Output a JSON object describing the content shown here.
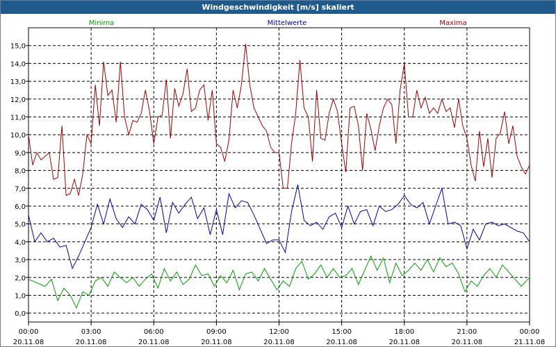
{
  "window": {
    "title": "Windgeschwindigkeit [m/s] skaliert"
  },
  "chart_data": {
    "type": "line",
    "title": "Windgeschwindigkeit [m/s] skaliert",
    "xlabel": "",
    "ylabel": "",
    "ylim": [
      -0.5,
      16
    ],
    "xlim": [
      0,
      24
    ],
    "yticks": [
      0,
      1,
      2,
      3,
      4,
      5,
      6,
      7,
      8,
      9,
      10,
      11,
      12,
      13,
      14,
      15
    ],
    "ytick_labels": [
      "0,0",
      "1,0",
      "2,0",
      "3,0",
      "4,0",
      "5,0",
      "6,0",
      "7,0",
      "8,0",
      "9,0",
      "10,0",
      "11,0",
      "12,0",
      "13,0",
      "14,0",
      "15,0"
    ],
    "xticks": [
      {
        "t": 0,
        "time": "00:00",
        "date": "20.11.08"
      },
      {
        "t": 3,
        "time": "03:00",
        "date": "20.11.08"
      },
      {
        "t": 6,
        "time": "06:00",
        "date": "20.11.08"
      },
      {
        "t": 9,
        "time": "09:00",
        "date": "20.11.08"
      },
      {
        "t": 12,
        "time": "12:00",
        "date": "20.11.08"
      },
      {
        "t": 15,
        "time": "15:00",
        "date": "20.11.08"
      },
      {
        "t": 18,
        "time": "18:00",
        "date": "20.11.08"
      },
      {
        "t": 21,
        "time": "21:00",
        "date": "20.11.08"
      },
      {
        "t": 24,
        "time": "00:00",
        "date": "21.11.08"
      }
    ],
    "grid": true,
    "series": [
      {
        "name": "Minima",
        "color": "#00a000",
        "legend_pos": "left",
        "x": [
          0,
          0.4,
          0.8,
          1.1,
          1.4,
          1.7,
          2.0,
          2.3,
          2.6,
          2.9,
          3.2,
          3.5,
          3.8,
          4.1,
          4.4,
          4.7,
          5.0,
          5.3,
          5.6,
          5.9,
          6.2,
          6.5,
          6.8,
          7.1,
          7.4,
          7.7,
          8.0,
          8.3,
          8.6,
          8.9,
          9.2,
          9.5,
          9.8,
          10.1,
          10.4,
          10.7,
          11.0,
          11.3,
          11.6,
          11.9,
          12.2,
          12.5,
          12.8,
          13.1,
          13.4,
          13.7,
          14.0,
          14.3,
          14.6,
          14.9,
          15.2,
          15.5,
          15.8,
          16.1,
          16.4,
          16.7,
          17.0,
          17.3,
          17.6,
          17.9,
          18.2,
          18.5,
          18.8,
          19.1,
          19.4,
          19.7,
          20.0,
          20.3,
          20.6,
          20.9,
          21.2,
          21.5,
          21.8,
          22.1,
          22.4,
          22.7,
          23.0,
          23.3,
          23.6,
          24.0
        ],
        "y": [
          1.9,
          1.7,
          1.5,
          1.9,
          0.7,
          1.4,
          1.0,
          0.3,
          1.2,
          1.0,
          1.8,
          2.0,
          1.5,
          2.3,
          2.0,
          1.7,
          2.0,
          1.5,
          1.9,
          2.2,
          1.4,
          2.5,
          1.8,
          2.3,
          1.6,
          1.9,
          2.7,
          2.1,
          2.2,
          1.5,
          2.1,
          1.7,
          2.4,
          1.3,
          2.2,
          2.3,
          1.8,
          2.5,
          1.9,
          1.3,
          1.8,
          1.5,
          2.5,
          2.9,
          1.9,
          2.2,
          2.7,
          2.0,
          2.5,
          2.0,
          2.1,
          2.5,
          1.6,
          2.4,
          3.2,
          2.4,
          3.1,
          1.7,
          2.8,
          2.1,
          2.4,
          2.8,
          2.4,
          3.0,
          2.3,
          3.1,
          2.6,
          2.8,
          2.2,
          1.2,
          1.8,
          1.5,
          2.1,
          2.5,
          2.0,
          2.7,
          2.3,
          1.9,
          1.5,
          2.0
        ]
      },
      {
        "name": "Mittelwerte",
        "color": "#0000b0",
        "legend_pos": "center",
        "x": [
          0,
          0.3,
          0.6,
          0.9,
          1.2,
          1.5,
          1.8,
          2.1,
          2.4,
          2.7,
          3.0,
          3.3,
          3.6,
          3.9,
          4.2,
          4.5,
          4.8,
          5.1,
          5.4,
          5.7,
          6.0,
          6.3,
          6.6,
          6.9,
          7.2,
          7.5,
          7.8,
          8.1,
          8.4,
          8.7,
          9.0,
          9.3,
          9.6,
          9.9,
          10.2,
          10.5,
          10.8,
          11.1,
          11.4,
          11.7,
          12.0,
          12.3,
          12.6,
          12.9,
          13.2,
          13.5,
          13.8,
          14.1,
          14.4,
          14.7,
          15.0,
          15.3,
          15.6,
          15.9,
          16.2,
          16.5,
          16.8,
          17.1,
          17.4,
          17.7,
          18.0,
          18.3,
          18.6,
          18.9,
          19.2,
          19.5,
          19.8,
          20.1,
          20.4,
          20.7,
          21.0,
          21.3,
          21.6,
          21.9,
          22.2,
          22.5,
          22.8,
          23.1,
          23.4,
          23.7,
          24.0
        ],
        "y": [
          5.5,
          4.0,
          4.5,
          4.0,
          4.2,
          3.7,
          3.8,
          2.5,
          3.2,
          4.0,
          4.8,
          6.1,
          5.0,
          6.4,
          5.3,
          4.8,
          5.4,
          5.0,
          6.1,
          5.8,
          5.2,
          6.5,
          4.5,
          6.2,
          5.6,
          6.1,
          6.5,
          5.3,
          5.9,
          4.4,
          5.8,
          4.4,
          6.7,
          5.9,
          6.3,
          6.2,
          5.5,
          4.7,
          3.9,
          4.1,
          4.1,
          3.4,
          5.7,
          7.2,
          5.2,
          4.9,
          5.1,
          4.7,
          5.4,
          5.6,
          4.8,
          6.0,
          5.0,
          5.7,
          5.8,
          4.9,
          6.0,
          5.7,
          5.8,
          6.1,
          6.6,
          6.1,
          5.9,
          6.2,
          5.0,
          6.0,
          7.0,
          5.0,
          5.1,
          4.9,
          3.6,
          4.7,
          4.1,
          5.0,
          5.1,
          4.9,
          5.0,
          4.8,
          4.6,
          4.5,
          4.0
        ]
      },
      {
        "name": "Maxima",
        "color": "#a00000",
        "legend_pos": "right",
        "x": [
          0,
          0.2,
          0.4,
          0.6,
          0.8,
          1.0,
          1.2,
          1.4,
          1.6,
          1.8,
          2.0,
          2.2,
          2.4,
          2.6,
          2.8,
          3.0,
          3.2,
          3.4,
          3.6,
          3.8,
          4.0,
          4.2,
          4.4,
          4.6,
          4.8,
          5.0,
          5.2,
          5.4,
          5.6,
          5.8,
          6.0,
          6.2,
          6.4,
          6.6,
          6.8,
          7.0,
          7.2,
          7.4,
          7.6,
          7.8,
          8.0,
          8.2,
          8.4,
          8.6,
          8.8,
          9.0,
          9.2,
          9.4,
          9.6,
          9.8,
          10.0,
          10.2,
          10.4,
          10.6,
          10.8,
          11.0,
          11.2,
          11.4,
          11.6,
          11.8,
          12.0,
          12.2,
          12.4,
          12.6,
          12.8,
          13.0,
          13.2,
          13.4,
          13.6,
          13.8,
          14.0,
          14.2,
          14.4,
          14.6,
          14.8,
          15.0,
          15.2,
          15.4,
          15.6,
          15.8,
          16.0,
          16.2,
          16.4,
          16.6,
          16.8,
          17.0,
          17.2,
          17.4,
          17.6,
          17.8,
          18.0,
          18.2,
          18.4,
          18.6,
          18.8,
          19.0,
          19.2,
          19.4,
          19.6,
          19.8,
          20.0,
          20.2,
          20.4,
          20.6,
          20.8,
          21.0,
          21.2,
          21.4,
          21.6,
          21.8,
          22.0,
          22.2,
          22.4,
          22.6,
          22.8,
          23.0,
          23.2,
          23.4,
          23.6,
          23.8,
          24.0
        ],
        "y": [
          10.0,
          8.3,
          9.0,
          8.6,
          8.8,
          9.0,
          7.5,
          7.6,
          10.5,
          6.6,
          6.7,
          7.5,
          6.6,
          7.8,
          10.0,
          9.5,
          12.8,
          10.5,
          14.1,
          12.2,
          12.5,
          10.7,
          14.1,
          11.0,
          10.0,
          10.8,
          10.7,
          11.2,
          12.5,
          11.3,
          9.5,
          11.0,
          11.1,
          13.1,
          9.8,
          12.6,
          11.6,
          12.3,
          13.7,
          11.3,
          11.5,
          12.5,
          12.8,
          10.8,
          12.5,
          9.5,
          9.3,
          8.5,
          9.7,
          12.5,
          11.5,
          12.8,
          15.1,
          12.8,
          11.5,
          11.0,
          10.5,
          10.2,
          9.3,
          9.0,
          9.0,
          7.0,
          7.0,
          9.5,
          11.2,
          14.2,
          11.5,
          11.0,
          8.5,
          12.5,
          9.8,
          9.7,
          11.2,
          12.0,
          11.3,
          9.5,
          7.9,
          11.5,
          11.6,
          10.5,
          8.0,
          11.2,
          10.3,
          9.1,
          10.5,
          11.5,
          12.0,
          11.7,
          9.5,
          12.5,
          14.0,
          11.0,
          11.0,
          12.5,
          11.5,
          12.1,
          11.2,
          11.5,
          11.2,
          12.0,
          11.3,
          11.5,
          10.4,
          12.0,
          10.5,
          9.8,
          8.3,
          7.4,
          10.2,
          8.2,
          9.8,
          7.6,
          9.8,
          10.1,
          11.3,
          9.5,
          10.5,
          8.8,
          8.2,
          7.8,
          8.3
        ]
      }
    ]
  }
}
